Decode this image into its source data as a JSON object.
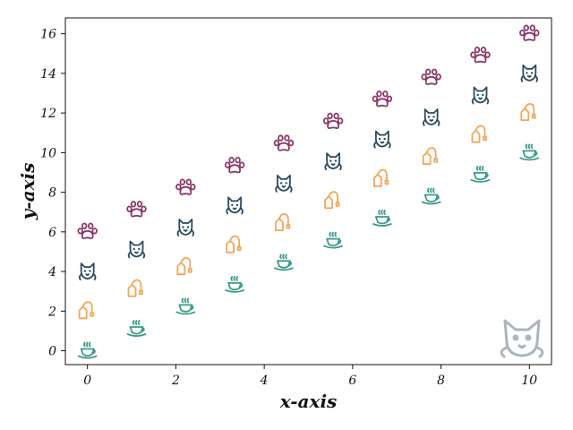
{
  "chart_data": {
    "type": "scatter",
    "xlabel": "x-axis",
    "ylabel": "y-axis",
    "xlim": [
      -0.5,
      10.5
    ],
    "ylim": [
      -0.7,
      16.8
    ],
    "x_ticks": [
      0,
      2,
      4,
      6,
      8,
      10
    ],
    "y_ticks": [
      0,
      2,
      4,
      6,
      8,
      10,
      12,
      14,
      16
    ],
    "grid": false,
    "legend": "none",
    "watermark_icon": "cat-face-icon",
    "series": [
      {
        "marker": "coffee-cup-icon",
        "color": "#3a9a8a",
        "x": [
          0,
          1.11,
          2.22,
          3.33,
          4.44,
          5.56,
          6.67,
          7.78,
          8.89,
          10
        ],
        "y": [
          0,
          1.11,
          2.22,
          3.33,
          4.44,
          5.56,
          6.67,
          7.78,
          8.89,
          10
        ]
      },
      {
        "marker": "teabag-icon",
        "color": "#f2a65a",
        "x": [
          0,
          1.11,
          2.22,
          3.33,
          4.44,
          5.56,
          6.67,
          7.78,
          8.89,
          10
        ],
        "y": [
          2,
          3.11,
          4.22,
          5.33,
          6.44,
          7.56,
          8.67,
          9.78,
          10.89,
          12
        ]
      },
      {
        "marker": "cat-head-icon",
        "color": "#2a4a5e",
        "x": [
          0,
          1.11,
          2.22,
          3.33,
          4.44,
          5.56,
          6.67,
          7.78,
          8.89,
          10
        ],
        "y": [
          4,
          5.11,
          6.22,
          7.33,
          8.44,
          9.56,
          10.67,
          11.78,
          12.89,
          14
        ]
      },
      {
        "marker": "paw-icon",
        "color": "#8a3868",
        "x": [
          0,
          1.11,
          2.22,
          3.33,
          4.44,
          5.56,
          6.67,
          7.78,
          8.89,
          10
        ],
        "y": [
          6,
          7.11,
          8.22,
          9.33,
          10.44,
          11.56,
          12.67,
          13.78,
          14.89,
          16
        ]
      }
    ]
  }
}
